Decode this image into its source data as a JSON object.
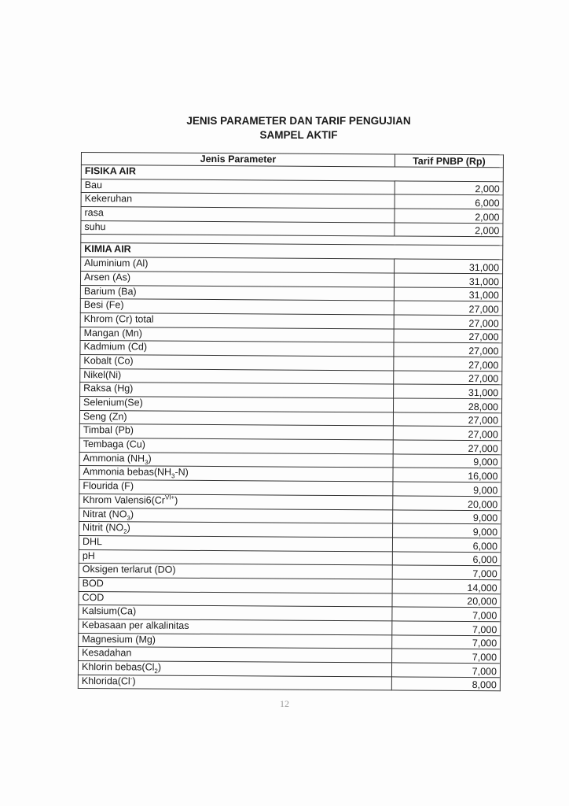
{
  "title_line1": "JENIS PARAMETER DAN TARIF PENGUJIAN",
  "title_line2": "SAMPEL AKTIF",
  "table": {
    "headers": [
      "Jenis Parameter",
      "Tarif PNBP (Rp)"
    ],
    "sections": [
      {
        "name": "FISIKA AIR",
        "rows": [
          {
            "name": "Bau",
            "tarif": "2,000"
          },
          {
            "name": "Kekeruhan",
            "tarif": "6,000"
          },
          {
            "name": "rasa",
            "tarif": "2,000"
          },
          {
            "name": "suhu",
            "tarif": "2,000"
          }
        ]
      },
      {
        "name": "KIMIA AIR",
        "rows": [
          {
            "name": "Aluminium (Al)",
            "tarif": "31,000"
          },
          {
            "name": "Arsen (As)",
            "tarif": "31,000"
          },
          {
            "name": "Barium (Ba)",
            "tarif": "31,000"
          },
          {
            "name": "Besi (Fe)",
            "tarif": "27,000"
          },
          {
            "name": "Khrom (Cr) total",
            "tarif": "27,000"
          },
          {
            "name": "Mangan (Mn)",
            "tarif": "27,000"
          },
          {
            "name": "Kadmium (Cd)",
            "tarif": "27,000"
          },
          {
            "name": "Kobalt (Co)",
            "tarif": "27,000"
          },
          {
            "name": "Nikel(Ni)",
            "tarif": "27,000"
          },
          {
            "name": "Raksa (Hg)",
            "tarif": "31,000"
          },
          {
            "name": "Selenium(Se)",
            "tarif": "28,000"
          },
          {
            "name": "Seng (Zn)",
            "tarif": "27,000"
          },
          {
            "name": "Timbal (Pb)",
            "tarif": "27,000"
          },
          {
            "name": "Tembaga (Cu)",
            "tarif": "27,000"
          },
          {
            "name": "Ammonia (NH",
            "sub": "3",
            "after": ")",
            "tarif": "9,000"
          },
          {
            "name": "Ammonia bebas(NH",
            "sub": "3",
            "after": "-N)",
            "tarif": "16,000"
          },
          {
            "name": "Flourida (F)",
            "tarif": "9,000"
          },
          {
            "name": "Khrom Valensi6(Cr",
            "sup": "VI+",
            "after": ")",
            "tarif": "20,000"
          },
          {
            "name": "Nitrat (NO",
            "sub": "3",
            "after": ")",
            "tarif": "9,000"
          },
          {
            "name": "Nitrit (NO",
            "sub": "2",
            "after": ")",
            "tarif": "9,000"
          },
          {
            "name": "DHL",
            "tarif": "6,000"
          },
          {
            "name": "pH",
            "tarif": "6,000"
          },
          {
            "name": "Oksigen terlarut (DO)",
            "tarif": "7,000"
          },
          {
            "name": "BOD",
            "tarif": "14,000"
          },
          {
            "name": "COD",
            "tarif": "20,000"
          },
          {
            "name": "Kalsium(Ca)",
            "tarif": "7,000"
          },
          {
            "name": "Kebasaan per alkalinitas",
            "tarif": "7,000"
          },
          {
            "name": "Magnesium (Mg)",
            "tarif": "7,000"
          },
          {
            "name": "Kesadahan",
            "tarif": "7,000"
          },
          {
            "name": "Khlorin bebas(Cl",
            "sub": "2",
            "after": ")",
            "tarif": "7,000"
          },
          {
            "name": "Khlorida(Cl",
            "sup": "-",
            "after": ")",
            "tarif": "8,000"
          }
        ]
      }
    ]
  },
  "page_number": "12"
}
